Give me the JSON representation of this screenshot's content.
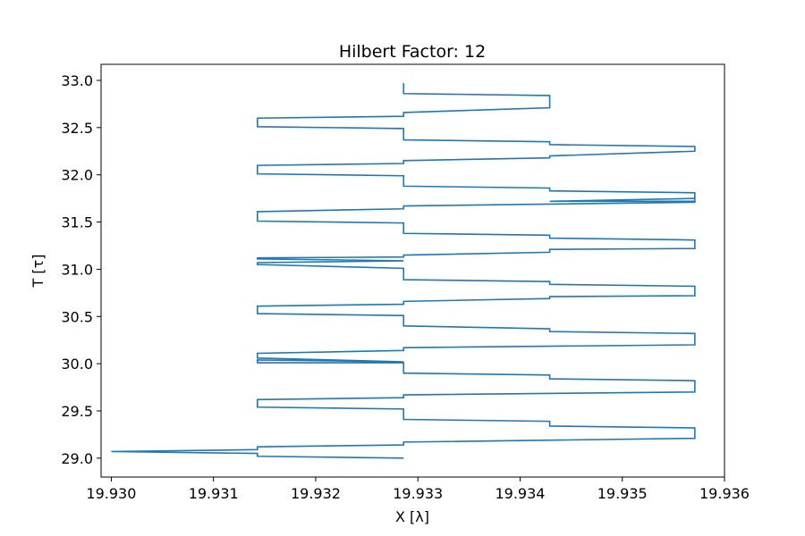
{
  "chart_data": {
    "type": "line",
    "title": "Hilbert Factor: 12",
    "xlabel": "X [λ]",
    "ylabel": "T [τ]",
    "xlim": [
      19.9299,
      19.936
    ],
    "ylim": [
      28.8,
      33.17
    ],
    "x_ticks": [
      19.93,
      19.931,
      19.932,
      19.933,
      19.934,
      19.935,
      19.936
    ],
    "x_tick_labels": [
      "19.930",
      "19.931",
      "19.932",
      "19.933",
      "19.934",
      "19.935",
      "19.936"
    ],
    "y_ticks": [
      29.0,
      29.5,
      30.0,
      30.5,
      31.0,
      31.5,
      32.0,
      32.5,
      33.0
    ],
    "y_tick_labels": [
      "29.0",
      "29.5",
      "30.0",
      "30.5",
      "31.0",
      "31.5",
      "32.0",
      "32.5",
      "33.0"
    ],
    "grid": false,
    "legend": "none",
    "color": "#1f77b4",
    "series": [
      {
        "x": [
          19.93286,
          19.93143,
          19.93143,
          19.93,
          19.93143,
          19.93143,
          19.93286,
          19.93286,
          19.93571,
          19.93571,
          19.93429,
          19.93429,
          19.93286,
          19.93286,
          19.93143,
          19.93143,
          19.93286,
          19.93286,
          19.93571,
          19.93571,
          19.93429,
          19.93429,
          19.93286,
          19.93286,
          19.93143,
          19.93143,
          19.93286,
          19.93143,
          19.93143,
          19.93286,
          19.93286,
          19.93571,
          19.93571,
          19.93429,
          19.93429,
          19.93286,
          19.93286,
          19.93143,
          19.93143,
          19.93286,
          19.93286,
          19.93429,
          19.93429,
          19.93571,
          19.93571,
          19.93429,
          19.93429,
          19.93286,
          19.93286,
          19.93143,
          19.93143,
          19.93286,
          19.93143,
          19.93143,
          19.93286,
          19.93286,
          19.93429,
          19.93429,
          19.93571,
          19.93571,
          19.93429,
          19.93429,
          19.93286,
          19.93286,
          19.93143,
          19.93143,
          19.93286,
          19.93286,
          19.93571,
          19.93571,
          19.93429,
          19.93571,
          19.93571,
          19.93429,
          19.93429,
          19.93286,
          19.93286,
          19.93143,
          19.93143,
          19.93286,
          19.93286,
          19.93429,
          19.93429,
          19.93571,
          19.93571,
          19.93429,
          19.93429,
          19.93286,
          19.93286,
          19.93143,
          19.93143,
          19.93286,
          19.93286,
          19.93429,
          19.93429,
          19.93286,
          19.93286
        ],
        "y": [
          29.0,
          29.02,
          29.05,
          29.07,
          29.09,
          29.12,
          29.14,
          29.17,
          29.21,
          29.32,
          29.34,
          29.39,
          29.41,
          29.52,
          29.54,
          29.62,
          29.64,
          29.67,
          29.7,
          29.82,
          29.84,
          29.88,
          29.9,
          30.01,
          30.01,
          30.04,
          30.02,
          30.06,
          30.11,
          30.14,
          30.17,
          30.2,
          30.32,
          30.34,
          30.37,
          30.4,
          30.51,
          30.53,
          30.61,
          30.63,
          30.66,
          30.69,
          30.71,
          30.72,
          30.82,
          30.84,
          30.87,
          30.89,
          31.01,
          31.05,
          31.07,
          31.09,
          31.11,
          31.12,
          31.13,
          31.15,
          31.18,
          31.21,
          31.22,
          31.31,
          31.33,
          31.36,
          31.38,
          31.49,
          31.51,
          31.61,
          31.64,
          31.67,
          31.71,
          31.75,
          31.72,
          31.72,
          31.81,
          31.83,
          31.86,
          31.88,
          31.99,
          32.01,
          32.1,
          32.12,
          32.15,
          32.18,
          32.2,
          32.25,
          32.3,
          32.32,
          32.35,
          32.37,
          32.49,
          32.51,
          32.6,
          32.62,
          32.66,
          32.71,
          32.84,
          32.86,
          32.97
        ]
      }
    ]
  }
}
